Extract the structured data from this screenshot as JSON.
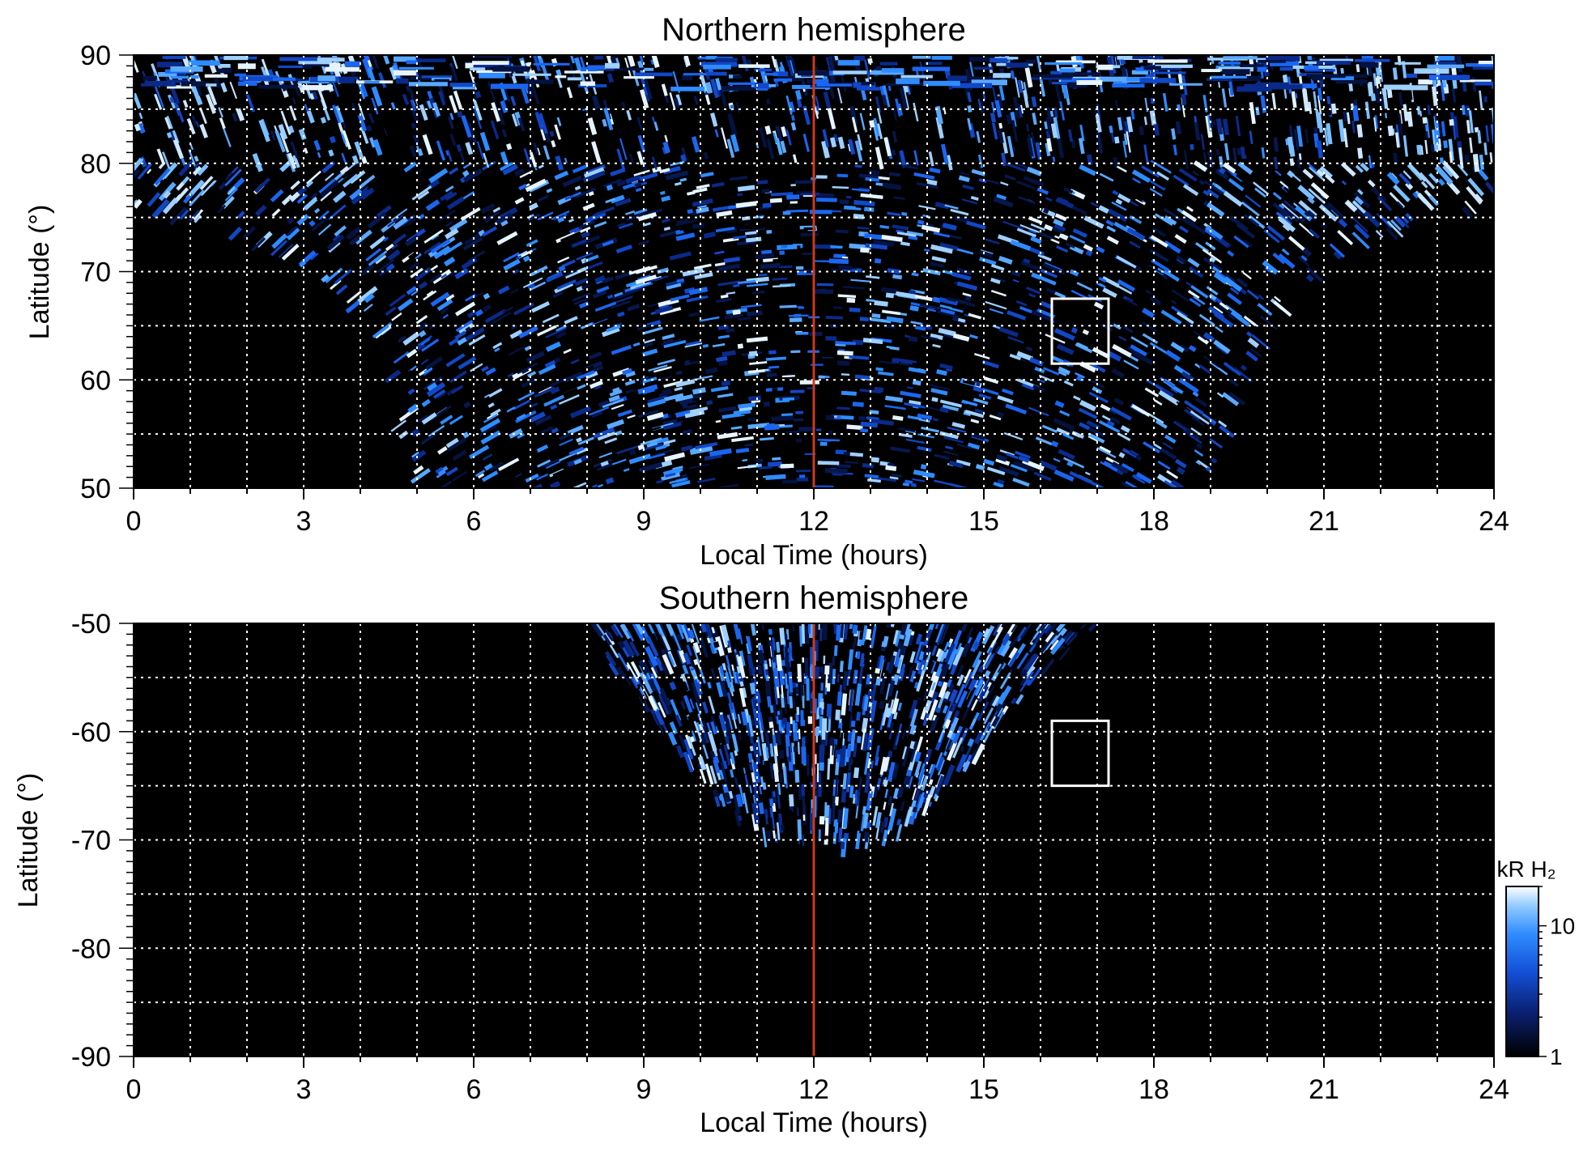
{
  "chart_data": [
    {
      "type": "heatmap",
      "title": "Northern hemisphere",
      "xlabel": "Local Time (hours)",
      "ylabel": "Latitude (°)",
      "xlim": [
        0,
        24
      ],
      "ylim": [
        50,
        90
      ],
      "xticks": [
        "0",
        "3",
        "6",
        "9",
        "12",
        "15",
        "18",
        "21",
        "24"
      ],
      "yticks": [
        "50",
        "60",
        "70",
        "80",
        "90"
      ],
      "xtick_values": [
        0,
        3,
        6,
        9,
        12,
        15,
        18,
        21,
        24
      ],
      "ytick_values": [
        50,
        60,
        70,
        80,
        90
      ],
      "grid": true,
      "grid_x": [
        1,
        2,
        3,
        4,
        5,
        6,
        7,
        8,
        9,
        10,
        11,
        12,
        13,
        14,
        15,
        16,
        17,
        18,
        19,
        20,
        21,
        22,
        23
      ],
      "grid_y": [
        55,
        60,
        65,
        70,
        75,
        80,
        85
      ],
      "reference_line": {
        "x": 12,
        "color": "#cc3a1a"
      },
      "highlight_box": {
        "x": [
          16.2,
          17.2
        ],
        "y": [
          61.5,
          67.5
        ],
        "color": "#ffffff"
      },
      "coverage": {
        "description_boundary": "lower latitude limit of data vs local time",
        "lt": [
          0,
          1,
          2,
          3,
          4,
          5,
          6,
          7,
          8,
          9,
          10,
          11,
          12,
          13,
          14,
          15,
          16,
          17,
          18,
          19,
          20,
          21,
          22,
          23,
          24
        ],
        "min_lat": [
          75.5,
          75,
          73,
          70.5,
          66,
          50,
          50,
          50,
          50,
          50,
          50,
          50,
          50,
          50,
          50,
          50,
          50,
          50,
          50,
          50,
          65,
          70.5,
          73,
          75,
          75.5
        ]
      }
    },
    {
      "type": "heatmap",
      "title": "Southern hemisphere",
      "xlabel": "Local Time (hours)",
      "ylabel": "Latitude (°)",
      "xlim": [
        0,
        24
      ],
      "ylim": [
        -90,
        -50
      ],
      "xticks": [
        "0",
        "3",
        "6",
        "9",
        "12",
        "15",
        "18",
        "21",
        "24"
      ],
      "yticks": [
        "-90",
        "-80",
        "-70",
        "-60",
        "-50"
      ],
      "xtick_values": [
        0,
        3,
        6,
        9,
        12,
        15,
        18,
        21,
        24
      ],
      "ytick_values": [
        -90,
        -80,
        -70,
        -60,
        -50
      ],
      "grid": true,
      "grid_x": [
        1,
        2,
        3,
        4,
        5,
        6,
        7,
        8,
        9,
        10,
        11,
        12,
        13,
        14,
        15,
        16,
        17,
        18,
        19,
        20,
        21,
        22,
        23
      ],
      "grid_y": [
        -85,
        -80,
        -75,
        -70,
        -65,
        -60,
        -55
      ],
      "reference_line": {
        "x": 12,
        "color": "#cc3a1a"
      },
      "highlight_box": {
        "x": [
          16.2,
          17.2
        ],
        "y": [
          -65,
          -59
        ],
        "color": "#ffffff"
      },
      "coverage": {
        "description_boundary": "equatorward edge -50, poleward limit of data vs local time",
        "lt": [
          7.9,
          8.5,
          9,
          9.5,
          10,
          10.5,
          11,
          11.5,
          12,
          12.5,
          13,
          13.5,
          14,
          14.5,
          15,
          15.5,
          16,
          16.5,
          17.0
        ],
        "max_abs_lat": [
          50,
          54.5,
          57.5,
          61,
          64.5,
          67.5,
          69.5,
          70.5,
          70,
          71,
          70.5,
          69.5,
          67.5,
          64.5,
          61.5,
          58,
          55,
          52.5,
          50
        ]
      }
    }
  ],
  "colorbar": {
    "label": "kR H₂",
    "scale": "log",
    "range": [
      1,
      20
    ],
    "ticks": [
      "1",
      "10"
    ],
    "tick_values": [
      1,
      10
    ],
    "colors": [
      "#000000",
      "#0a1f6e",
      "#1350d8",
      "#2f8cff",
      "#8cc8ff",
      "#ffffff"
    ]
  },
  "colors": {
    "background": "#000000",
    "grid": "#ffffff",
    "reference_line": "#cc3a1a"
  }
}
